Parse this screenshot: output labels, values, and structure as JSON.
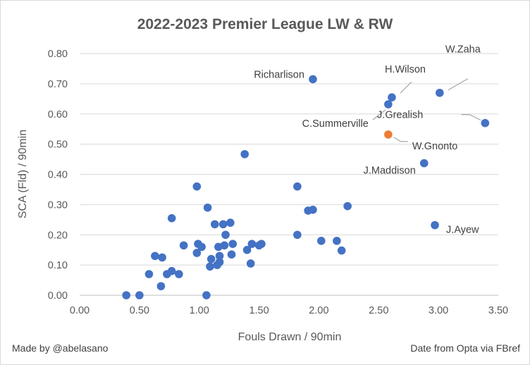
{
  "chart_data": {
    "type": "scatter",
    "title": "2022-2023 Premier League LW & RW",
    "xlabel": "Fouls Drawn / 90min",
    "ylabel": "SCA (Fld) / 90min",
    "xlim": [
      0,
      3.5
    ],
    "ylim": [
      0,
      0.8
    ],
    "x_ticks": [
      "0.00",
      "0.50",
      "1.00",
      "1.50",
      "2.00",
      "2.50",
      "3.00",
      "3.50"
    ],
    "y_ticks": [
      "0.00",
      "0.10",
      "0.20",
      "0.30",
      "0.40",
      "0.50",
      "0.60",
      "0.70",
      "0.80"
    ],
    "grid": "horizontal",
    "colors": {
      "default": "#4472c4",
      "highlight": "#ed7d31",
      "grid": "#d9d9d9",
      "text": "#595959"
    },
    "points": [
      {
        "x": 0.39,
        "y": 0.0
      },
      {
        "x": 0.5,
        "y": 0.0
      },
      {
        "x": 1.06,
        "y": 0.0
      },
      {
        "x": 0.58,
        "y": 0.07
      },
      {
        "x": 0.63,
        "y": 0.13
      },
      {
        "x": 0.68,
        "y": 0.03
      },
      {
        "x": 0.69,
        "y": 0.125
      },
      {
        "x": 0.73,
        "y": 0.07
      },
      {
        "x": 0.77,
        "y": 0.08
      },
      {
        "x": 0.77,
        "y": 0.255
      },
      {
        "x": 0.83,
        "y": 0.07
      },
      {
        "x": 0.87,
        "y": 0.165
      },
      {
        "x": 0.98,
        "y": 0.36
      },
      {
        "x": 0.98,
        "y": 0.14
      },
      {
        "x": 0.99,
        "y": 0.17
      },
      {
        "x": 1.02,
        "y": 0.16
      },
      {
        "x": 1.07,
        "y": 0.29
      },
      {
        "x": 1.09,
        "y": 0.095
      },
      {
        "x": 1.1,
        "y": 0.12
      },
      {
        "x": 1.13,
        "y": 0.235
      },
      {
        "x": 1.15,
        "y": 0.1
      },
      {
        "x": 1.16,
        "y": 0.16
      },
      {
        "x": 1.17,
        "y": 0.11
      },
      {
        "x": 1.17,
        "y": 0.13
      },
      {
        "x": 1.2,
        "y": 0.235
      },
      {
        "x": 1.21,
        "y": 0.165
      },
      {
        "x": 1.22,
        "y": 0.2
      },
      {
        "x": 1.26,
        "y": 0.24
      },
      {
        "x": 1.27,
        "y": 0.135
      },
      {
        "x": 1.28,
        "y": 0.17
      },
      {
        "x": 1.38,
        "y": 0.467
      },
      {
        "x": 1.4,
        "y": 0.15
      },
      {
        "x": 1.43,
        "y": 0.105
      },
      {
        "x": 1.44,
        "y": 0.17
      },
      {
        "x": 1.5,
        "y": 0.165
      },
      {
        "x": 1.52,
        "y": 0.17
      },
      {
        "x": 1.82,
        "y": 0.36
      },
      {
        "x": 1.82,
        "y": 0.2
      },
      {
        "x": 1.91,
        "y": 0.28
      },
      {
        "x": 1.95,
        "y": 0.283
      },
      {
        "x": 1.95,
        "y": 0.715,
        "label": "Richarlison"
      },
      {
        "x": 2.02,
        "y": 0.18
      },
      {
        "x": 2.15,
        "y": 0.18
      },
      {
        "x": 2.19,
        "y": 0.148
      },
      {
        "x": 2.24,
        "y": 0.295
      },
      {
        "x": 2.58,
        "y": 0.632,
        "label": "C.Summerville"
      },
      {
        "x": 2.58,
        "y": 0.532,
        "label": "W.Gnonto",
        "highlight": true
      },
      {
        "x": 2.61,
        "y": 0.655,
        "label": "H.Wilson"
      },
      {
        "x": 2.88,
        "y": 0.437,
        "label": "J.Maddison"
      },
      {
        "x": 2.97,
        "y": 0.232,
        "label": "J.Ayew"
      },
      {
        "x": 3.01,
        "y": 0.67,
        "label": "W.Zaha"
      },
      {
        "x": 3.39,
        "y": 0.57,
        "label": "J.Grealish"
      }
    ]
  },
  "footer": {
    "left": "Made by @abelasano",
    "right": "Date from Opta via FBref"
  }
}
